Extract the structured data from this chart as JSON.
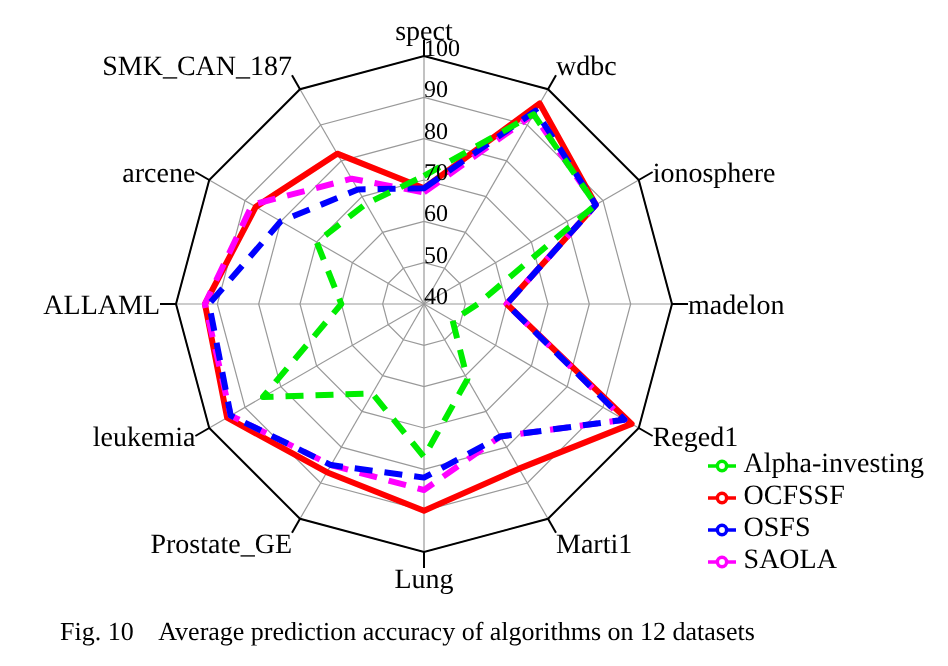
{
  "chart_data": {
    "type": "radar",
    "categories": [
      "spect",
      "wdbc",
      "ionosphere",
      "madelon",
      "Reged1",
      "Marti1",
      "Lung",
      "Prostate_GE",
      "leukemia",
      "ALLAML",
      "arcene",
      "SMK_CAN_187"
    ],
    "series": [
      {
        "name": "OCFSSF",
        "color": "#ff0000",
        "line_style": "solid",
        "values": [
          68,
          96,
          88,
          60,
          98,
          86,
          90,
          87,
          95,
          93,
          87,
          82
        ]
      },
      {
        "name": "SAOLA",
        "color": "#ff00ff",
        "line_style": "dashed",
        "values": [
          67,
          93,
          88,
          60,
          96,
          77,
          85,
          85,
          94,
          93,
          88,
          75
        ]
      },
      {
        "name": "OSFS",
        "color": "#0000ff",
        "line_style": "dashed",
        "values": [
          68,
          94,
          88,
          60,
          96,
          77,
          82,
          85,
          94,
          92,
          80,
          72
        ]
      },
      {
        "name": "Alpha-investing",
        "color": "#00ee00",
        "line_style": "dashed",
        "values": [
          71,
          93,
          88,
          53,
          48,
          61,
          77,
          65,
          85,
          60,
          70,
          68
        ]
      }
    ],
    "ylim": [
      40,
      100
    ],
    "yticks": [
      40,
      50,
      60,
      70,
      80,
      90,
      100
    ],
    "grid": true,
    "legend": "bottom right",
    "marker": "none",
    "annotations": [
      "Fig. 10    Average prediction accuracy of algorithms on 12 datasets"
    ]
  }
}
